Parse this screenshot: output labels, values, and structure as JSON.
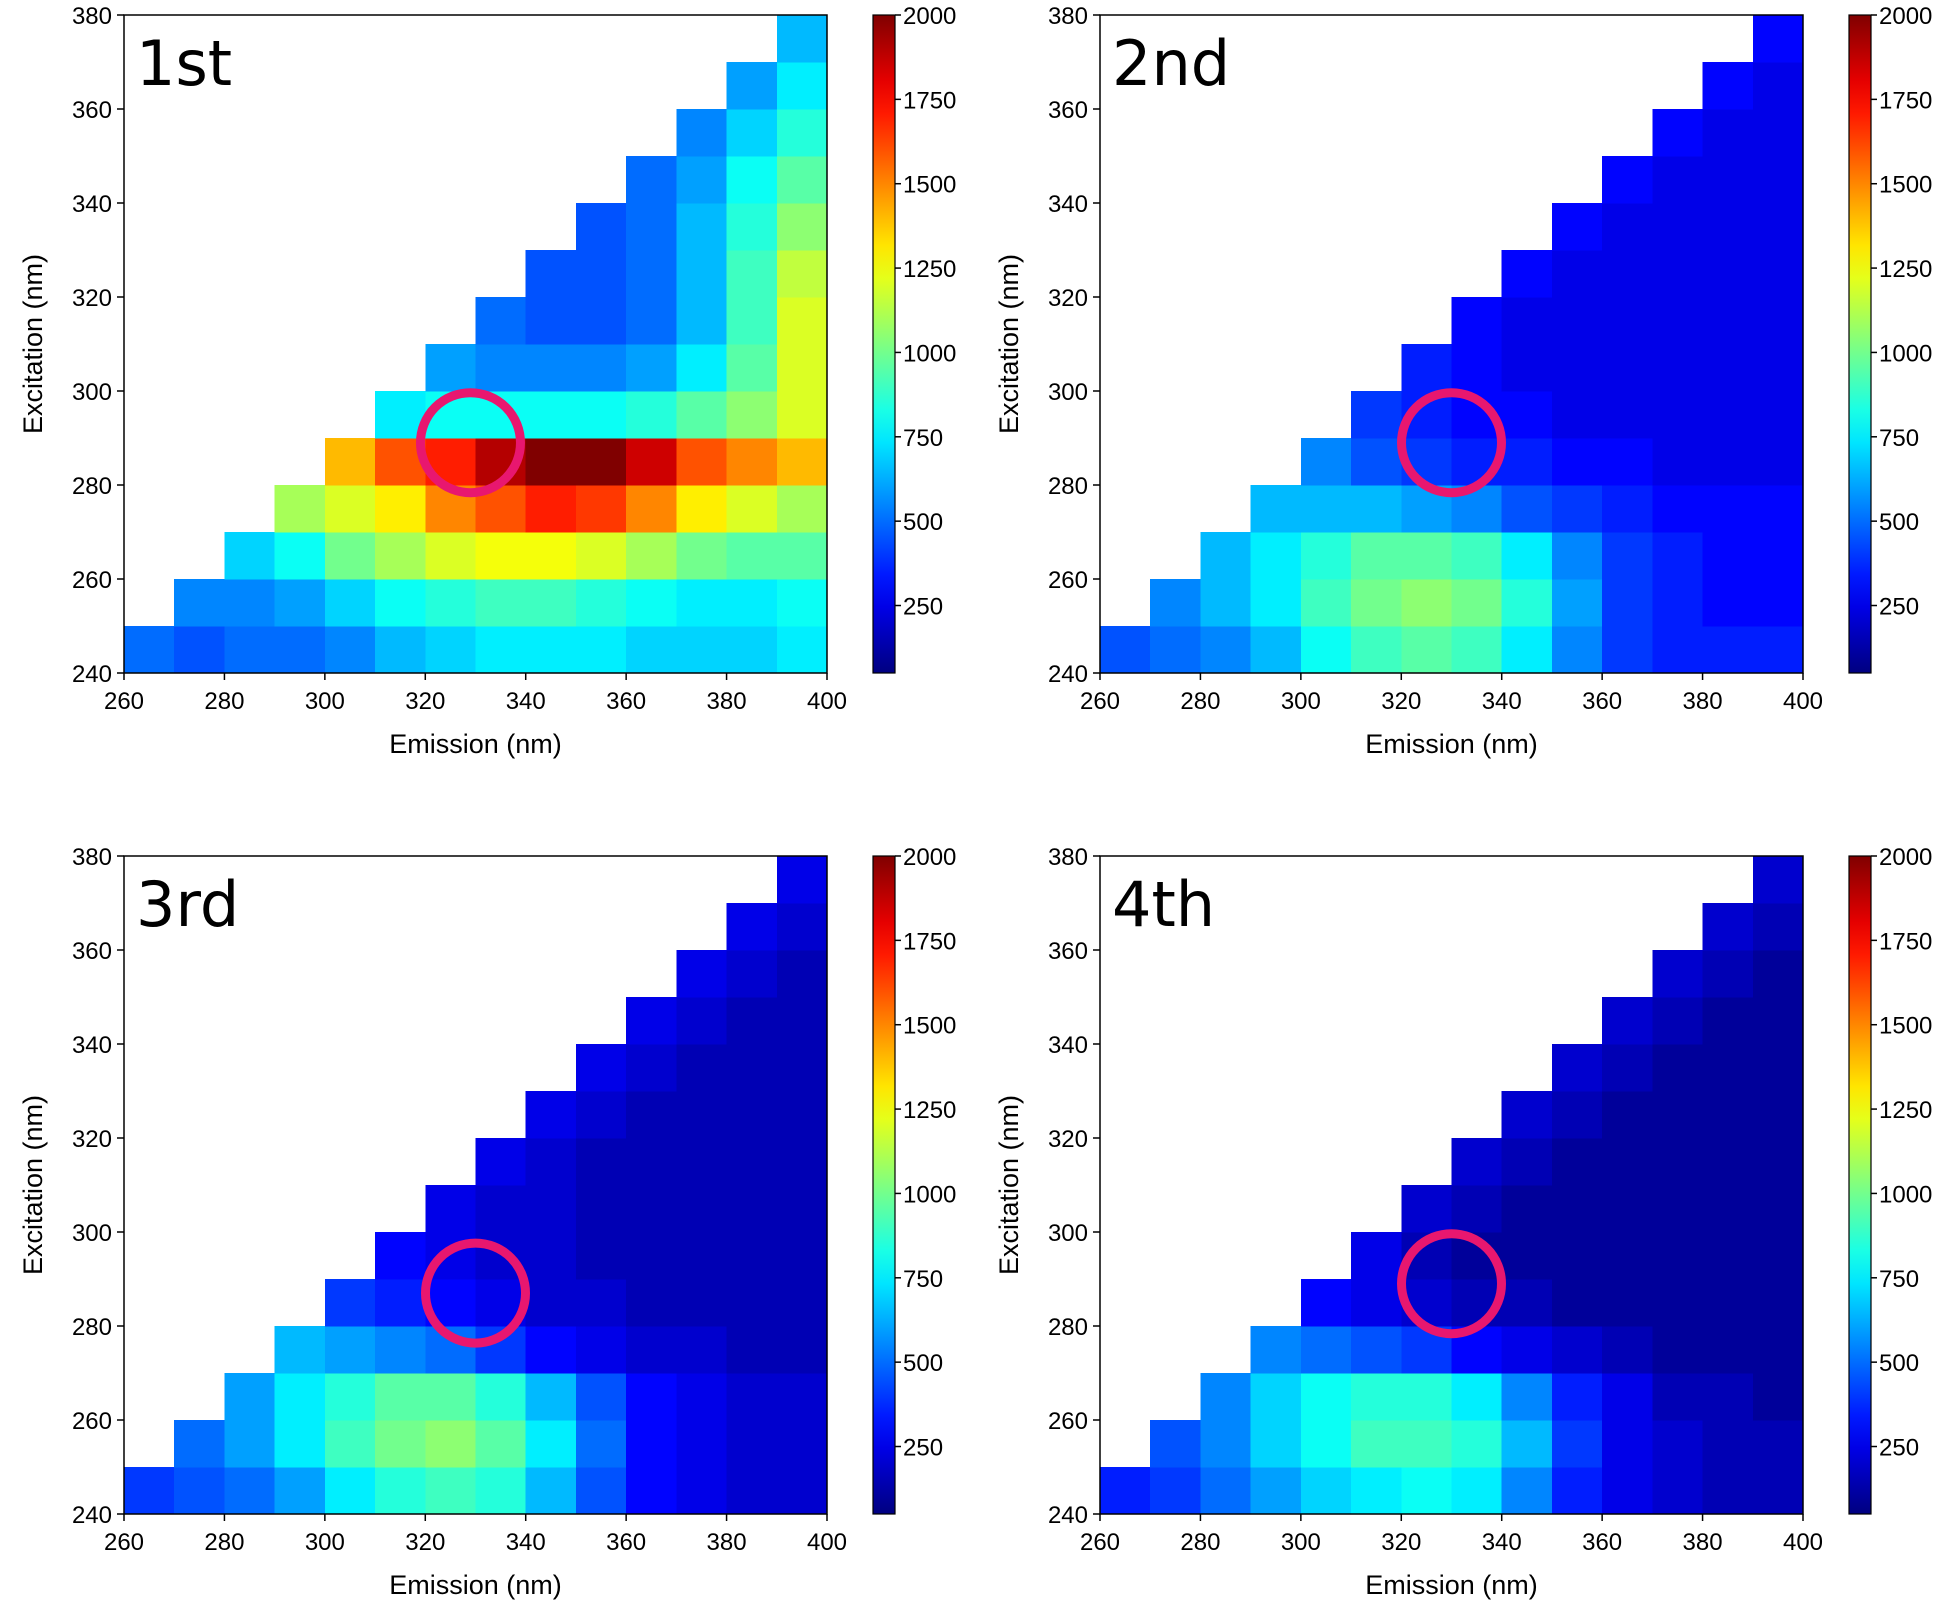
{
  "chart_data": [
    {
      "type": "heatmap",
      "title": "1st",
      "xlabel": "Emission (nm)",
      "ylabel": "Excitation (nm)",
      "x": [
        265,
        275,
        285,
        295,
        305,
        315,
        325,
        335,
        345,
        355,
        365,
        375,
        385,
        395
      ],
      "y": [
        245,
        255,
        265,
        275,
        285,
        295,
        305,
        315,
        325,
        335,
        345,
        355,
        365,
        375
      ],
      "z": [
        [
          500,
          450,
          500,
          500,
          550,
          650,
          700,
          750,
          750,
          750,
          700,
          700,
          700,
          750
        ],
        [
          null,
          550,
          550,
          600,
          700,
          800,
          850,
          900,
          900,
          850,
          800,
          750,
          750,
          800
        ],
        [
          null,
          null,
          700,
          800,
          1000,
          1100,
          1200,
          1250,
          1250,
          1200,
          1100,
          1000,
          950,
          950
        ],
        [
          null,
          null,
          null,
          1100,
          1200,
          1300,
          1500,
          1600,
          1700,
          1650,
          1500,
          1300,
          1200,
          1100
        ],
        [
          null,
          null,
          null,
          null,
          1400,
          1600,
          1700,
          1900,
          2000,
          2000,
          1850,
          1600,
          1500,
          1400
        ],
        [
          null,
          null,
          null,
          null,
          null,
          750,
          800,
          800,
          800,
          800,
          850,
          950,
          1050,
          1200
        ],
        [
          null,
          null,
          null,
          null,
          null,
          null,
          600,
          550,
          550,
          550,
          600,
          750,
          950,
          1200
        ],
        [
          null,
          null,
          null,
          null,
          null,
          null,
          null,
          500,
          450,
          450,
          500,
          650,
          900,
          1200
        ],
        [
          null,
          null,
          null,
          null,
          null,
          null,
          null,
          null,
          450,
          450,
          500,
          650,
          900,
          1150
        ],
        [
          null,
          null,
          null,
          null,
          null,
          null,
          null,
          null,
          null,
          450,
          500,
          650,
          850,
          1050
        ],
        [
          null,
          null,
          null,
          null,
          null,
          null,
          null,
          null,
          null,
          null,
          500,
          600,
          800,
          950
        ],
        [
          null,
          null,
          null,
          null,
          null,
          null,
          null,
          null,
          null,
          null,
          null,
          550,
          700,
          850
        ],
        [
          null,
          null,
          null,
          null,
          null,
          null,
          null,
          null,
          null,
          null,
          null,
          null,
          600,
          750
        ],
        [
          null,
          null,
          null,
          null,
          null,
          null,
          null,
          null,
          null,
          null,
          null,
          null,
          null,
          650
        ]
      ],
      "xlim": [
        260,
        400
      ],
      "ylim": [
        240,
        380
      ],
      "xticks": [
        260,
        280,
        300,
        320,
        340,
        360,
        380,
        400
      ],
      "yticks": [
        240,
        260,
        280,
        300,
        320,
        340,
        360,
        380
      ],
      "clim": [
        50,
        2000
      ],
      "cticks": [
        250,
        500,
        750,
        1000,
        1250,
        1500,
        1750,
        2000
      ],
      "colormap": "jet",
      "circle": {
        "x": 329,
        "y": 289,
        "color": "#e8176f"
      }
    },
    {
      "type": "heatmap",
      "title": "2nd",
      "xlabel": "Emission (nm)",
      "ylabel": "Excitation (nm)",
      "x": [
        265,
        275,
        285,
        295,
        305,
        315,
        325,
        335,
        345,
        355,
        365,
        375,
        385,
        395
      ],
      "y": [
        245,
        255,
        265,
        275,
        285,
        295,
        305,
        315,
        325,
        335,
        345,
        355,
        365,
        375
      ],
      "z": [
        [
          450,
          500,
          550,
          650,
          800,
          900,
          950,
          900,
          750,
          550,
          400,
          350,
          350,
          350
        ],
        [
          null,
          550,
          650,
          750,
          900,
          1000,
          1050,
          1000,
          850,
          600,
          400,
          350,
          300,
          300
        ],
        [
          null,
          null,
          650,
          750,
          850,
          950,
          950,
          900,
          750,
          550,
          400,
          350,
          300,
          300
        ],
        [
          null,
          null,
          null,
          650,
          650,
          650,
          600,
          550,
          450,
          400,
          350,
          300,
          300,
          300
        ],
        [
          null,
          null,
          null,
          null,
          550,
          450,
          400,
          350,
          350,
          300,
          300,
          250,
          250,
          250
        ],
        [
          null,
          null,
          null,
          null,
          null,
          400,
          350,
          300,
          300,
          250,
          250,
          250,
          250,
          250
        ],
        [
          null,
          null,
          null,
          null,
          null,
          null,
          350,
          300,
          250,
          250,
          250,
          250,
          250,
          250
        ],
        [
          null,
          null,
          null,
          null,
          null,
          null,
          null,
          300,
          250,
          250,
          250,
          250,
          250,
          250
        ],
        [
          null,
          null,
          null,
          null,
          null,
          null,
          null,
          null,
          300,
          250,
          250,
          250,
          250,
          250
        ],
        [
          null,
          null,
          null,
          null,
          null,
          null,
          null,
          null,
          null,
          300,
          250,
          250,
          250,
          250
        ],
        [
          null,
          null,
          null,
          null,
          null,
          null,
          null,
          null,
          null,
          null,
          300,
          250,
          250,
          250
        ],
        [
          null,
          null,
          null,
          null,
          null,
          null,
          null,
          null,
          null,
          null,
          null,
          300,
          250,
          250
        ],
        [
          null,
          null,
          null,
          null,
          null,
          null,
          null,
          null,
          null,
          null,
          null,
          null,
          300,
          250
        ],
        [
          null,
          null,
          null,
          null,
          null,
          null,
          null,
          null,
          null,
          null,
          null,
          null,
          null,
          300
        ]
      ],
      "xlim": [
        260,
        400
      ],
      "ylim": [
        240,
        380
      ],
      "xticks": [
        260,
        280,
        300,
        320,
        340,
        360,
        380,
        400
      ],
      "yticks": [
        240,
        260,
        280,
        300,
        320,
        340,
        360,
        380
      ],
      "clim": [
        50,
        2000
      ],
      "cticks": [
        250,
        500,
        750,
        1000,
        1250,
        1500,
        1750,
        2000
      ],
      "colormap": "jet",
      "circle": {
        "x": 330,
        "y": 289,
        "color": "#e8176f"
      }
    },
    {
      "type": "heatmap",
      "title": "3rd",
      "xlabel": "Emission (nm)",
      "ylabel": "Excitation (nm)",
      "x": [
        265,
        275,
        285,
        295,
        305,
        315,
        325,
        335,
        345,
        355,
        365,
        375,
        385,
        395
      ],
      "y": [
        245,
        255,
        265,
        275,
        285,
        295,
        305,
        315,
        325,
        335,
        345,
        355,
        365,
        375
      ],
      "z": [
        [
          400,
          450,
          500,
          600,
          750,
          850,
          900,
          850,
          650,
          450,
          300,
          250,
          200,
          200
        ],
        [
          null,
          500,
          600,
          750,
          900,
          1000,
          1050,
          950,
          750,
          500,
          300,
          250,
          200,
          200
        ],
        [
          null,
          null,
          600,
          750,
          850,
          950,
          950,
          850,
          650,
          450,
          300,
          250,
          200,
          200
        ],
        [
          null,
          null,
          null,
          650,
          600,
          550,
          500,
          400,
          300,
          250,
          200,
          200,
          150,
          150
        ],
        [
          null,
          null,
          null,
          null,
          400,
          350,
          300,
          250,
          200,
          200,
          150,
          150,
          150,
          150
        ],
        [
          null,
          null,
          null,
          null,
          null,
          300,
          250,
          200,
          200,
          150,
          150,
          150,
          150,
          150
        ],
        [
          null,
          null,
          null,
          null,
          null,
          null,
          250,
          200,
          200,
          150,
          150,
          150,
          150,
          150
        ],
        [
          null,
          null,
          null,
          null,
          null,
          null,
          null,
          250,
          200,
          150,
          150,
          150,
          150,
          150
        ],
        [
          null,
          null,
          null,
          null,
          null,
          null,
          null,
          null,
          250,
          200,
          150,
          150,
          150,
          150
        ],
        [
          null,
          null,
          null,
          null,
          null,
          null,
          null,
          null,
          null,
          250,
          200,
          150,
          150,
          150
        ],
        [
          null,
          null,
          null,
          null,
          null,
          null,
          null,
          null,
          null,
          null,
          250,
          200,
          150,
          150
        ],
        [
          null,
          null,
          null,
          null,
          null,
          null,
          null,
          null,
          null,
          null,
          null,
          250,
          200,
          150
        ],
        [
          null,
          null,
          null,
          null,
          null,
          null,
          null,
          null,
          null,
          null,
          null,
          null,
          250,
          200
        ],
        [
          null,
          null,
          null,
          null,
          null,
          null,
          null,
          null,
          null,
          null,
          null,
          null,
          null,
          250
        ]
      ],
      "xlim": [
        260,
        400
      ],
      "ylim": [
        240,
        380
      ],
      "xticks": [
        260,
        280,
        300,
        320,
        340,
        360,
        380,
        400
      ],
      "yticks": [
        240,
        260,
        280,
        300,
        320,
        340,
        360,
        380
      ],
      "clim": [
        50,
        2000
      ],
      "cticks": [
        250,
        500,
        750,
        1000,
        1250,
        1500,
        1750,
        2000
      ],
      "colormap": "jet",
      "circle": {
        "x": 330,
        "y": 287,
        "color": "#e8176f"
      }
    },
    {
      "type": "heatmap",
      "title": "4th",
      "xlabel": "Emission (nm)",
      "ylabel": "Excitation (nm)",
      "x": [
        265,
        275,
        285,
        295,
        305,
        315,
        325,
        335,
        345,
        355,
        365,
        375,
        385,
        395
      ],
      "y": [
        245,
        255,
        265,
        275,
        285,
        295,
        305,
        315,
        325,
        335,
        345,
        355,
        365,
        375
      ],
      "z": [
        [
          350,
          400,
          500,
          600,
          700,
          750,
          800,
          750,
          550,
          350,
          250,
          200,
          150,
          150
        ],
        [
          null,
          450,
          550,
          700,
          800,
          900,
          900,
          850,
          650,
          400,
          250,
          200,
          150,
          150
        ],
        [
          null,
          null,
          550,
          700,
          800,
          850,
          850,
          750,
          550,
          350,
          250,
          150,
          150,
          100
        ],
        [
          null,
          null,
          null,
          550,
          500,
          450,
          400,
          300,
          250,
          200,
          150,
          100,
          100,
          100
        ],
        [
          null,
          null,
          null,
          null,
          300,
          250,
          200,
          150,
          150,
          100,
          100,
          100,
          100,
          100
        ],
        [
          null,
          null,
          null,
          null,
          null,
          250,
          150,
          100,
          100,
          100,
          100,
          100,
          100,
          100
        ],
        [
          null,
          null,
          null,
          null,
          null,
          null,
          200,
          150,
          100,
          100,
          100,
          100,
          100,
          100
        ],
        [
          null,
          null,
          null,
          null,
          null,
          null,
          null,
          200,
          150,
          100,
          100,
          100,
          100,
          100
        ],
        [
          null,
          null,
          null,
          null,
          null,
          null,
          null,
          null,
          200,
          150,
          100,
          100,
          100,
          100
        ],
        [
          null,
          null,
          null,
          null,
          null,
          null,
          null,
          null,
          null,
          200,
          150,
          100,
          100,
          100
        ],
        [
          null,
          null,
          null,
          null,
          null,
          null,
          null,
          null,
          null,
          null,
          200,
          150,
          100,
          100
        ],
        [
          null,
          null,
          null,
          null,
          null,
          null,
          null,
          null,
          null,
          null,
          null,
          200,
          150,
          100
        ],
        [
          null,
          null,
          null,
          null,
          null,
          null,
          null,
          null,
          null,
          null,
          null,
          null,
          200,
          150
        ],
        [
          null,
          null,
          null,
          null,
          null,
          null,
          null,
          null,
          null,
          null,
          null,
          null,
          null,
          200
        ]
      ],
      "xlim": [
        260,
        400
      ],
      "ylim": [
        240,
        380
      ],
      "xticks": [
        260,
        280,
        300,
        320,
        340,
        360,
        380,
        400
      ],
      "yticks": [
        240,
        260,
        280,
        300,
        320,
        340,
        360,
        380
      ],
      "clim": [
        50,
        2000
      ],
      "cticks": [
        250,
        500,
        750,
        1000,
        1250,
        1500,
        1750,
        2000
      ],
      "colormap": "jet",
      "circle": {
        "x": 330,
        "y": 289,
        "color": "#e8176f"
      }
    }
  ]
}
